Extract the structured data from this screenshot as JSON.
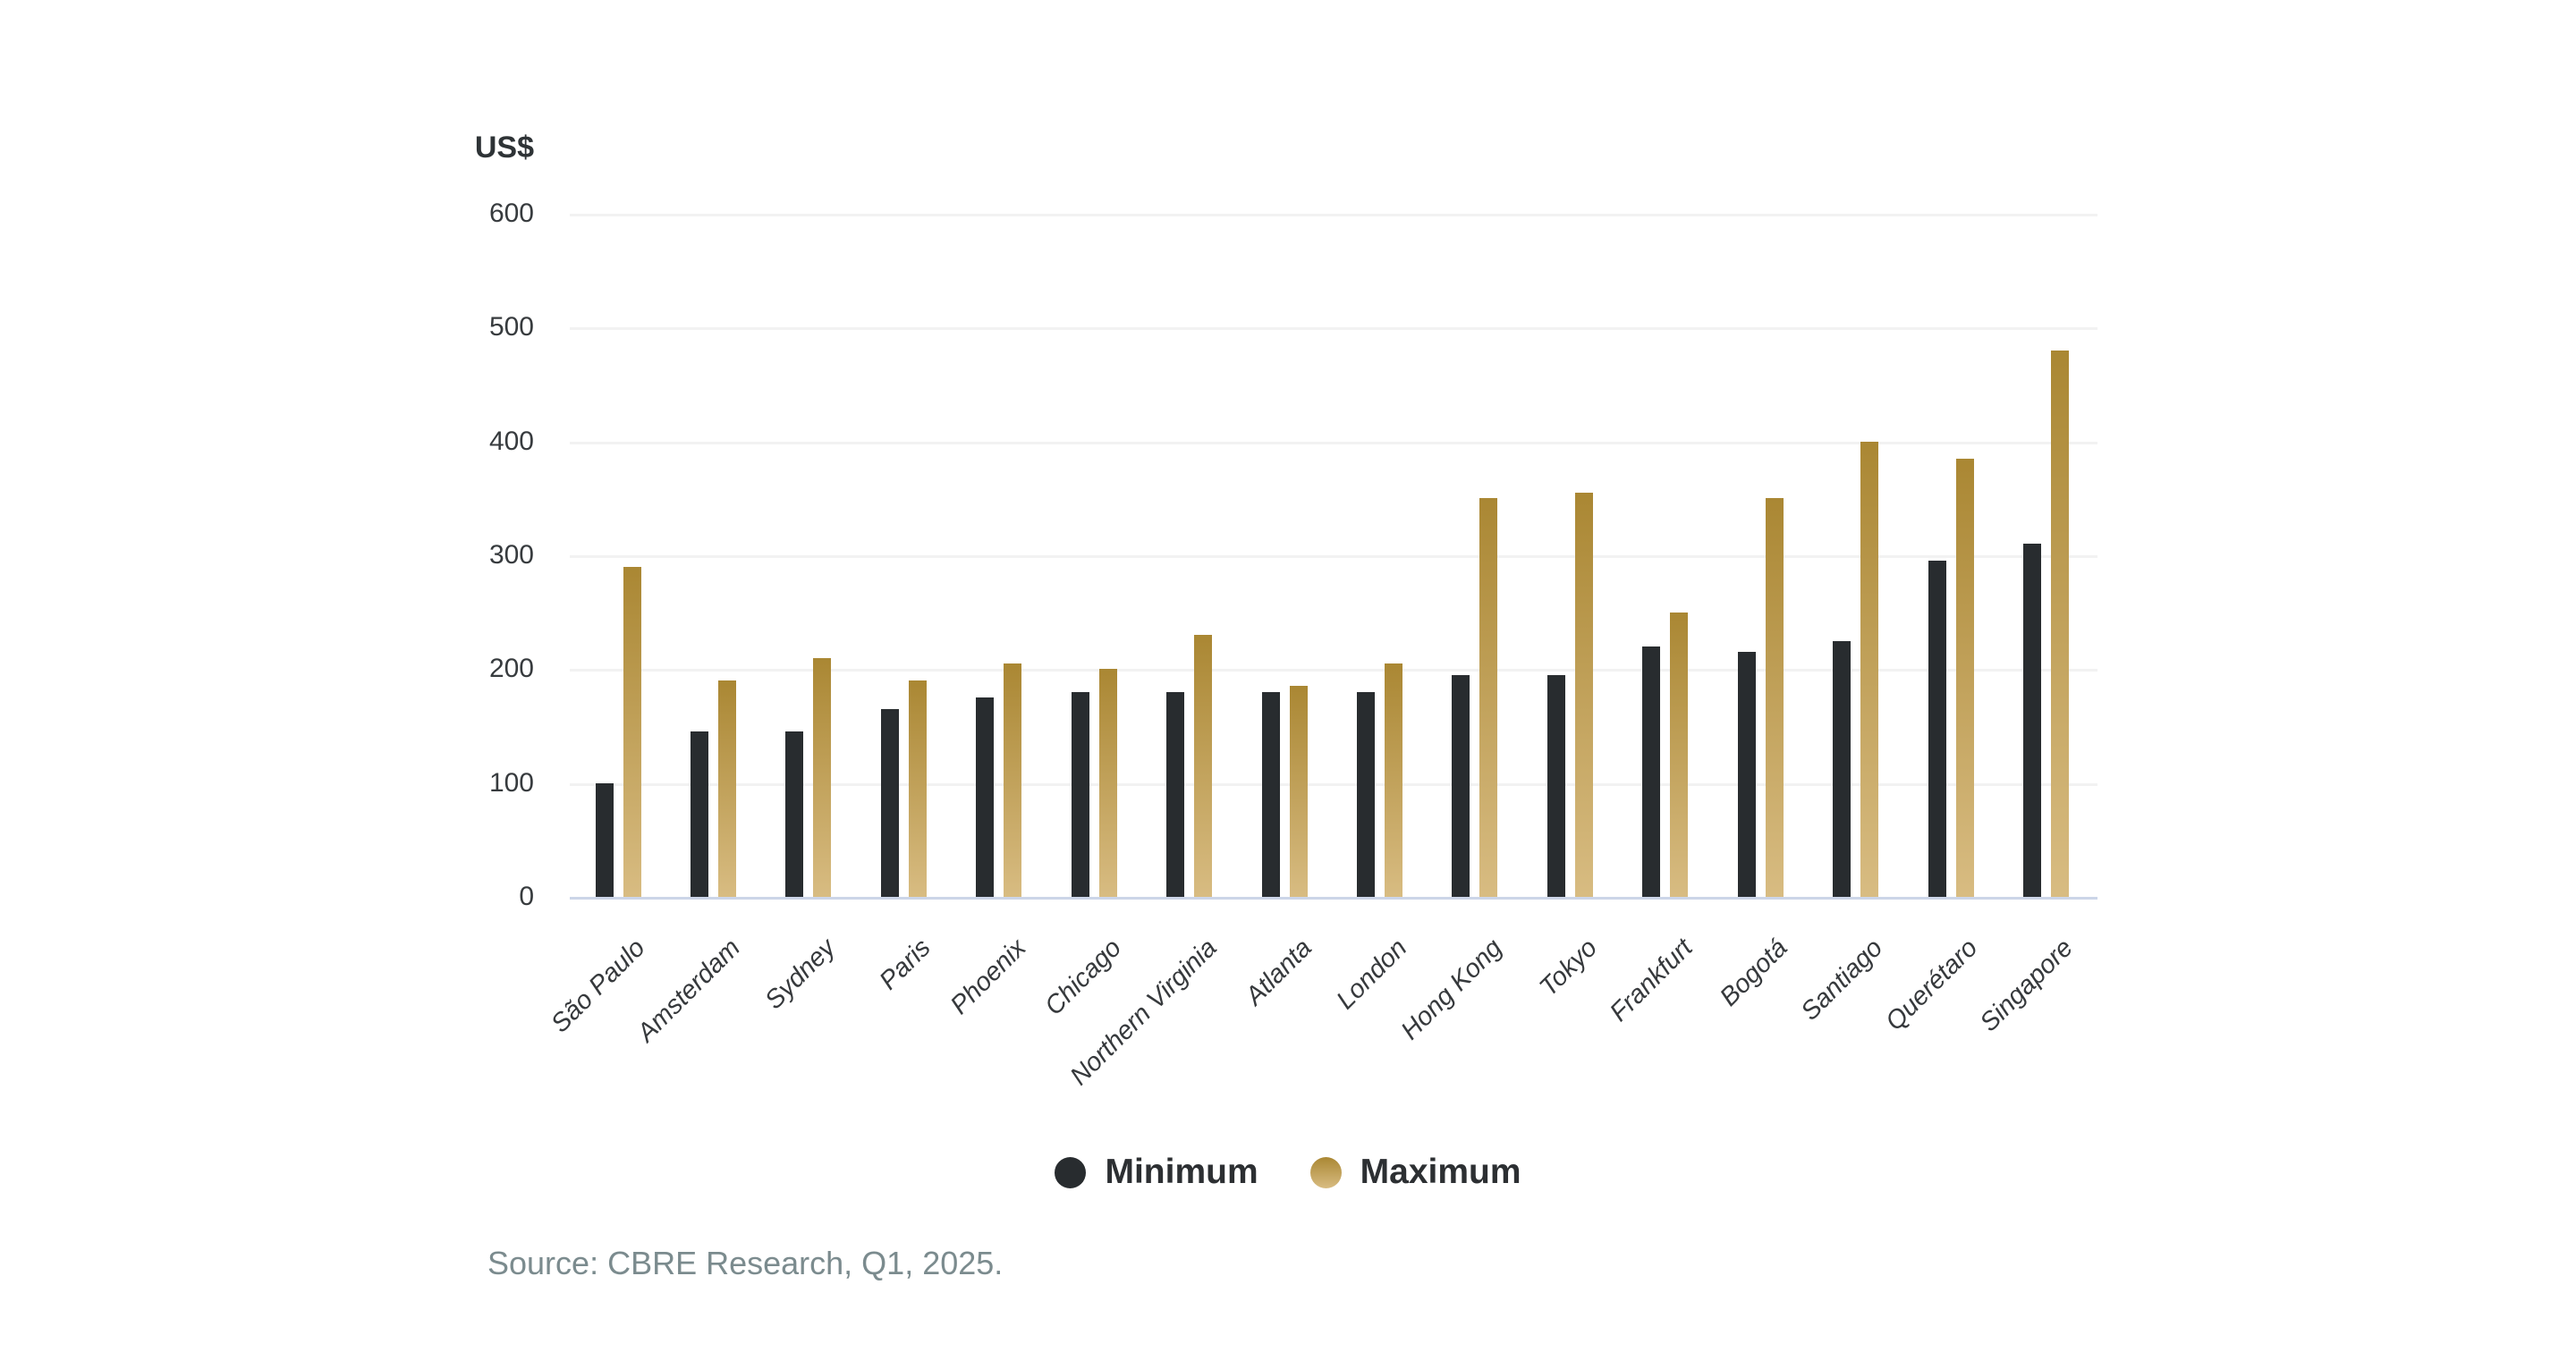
{
  "chart_data": {
    "type": "bar",
    "title": "",
    "y_axis_title": "US$",
    "xlabel": "",
    "ylabel": "US$",
    "ylim": [
      0,
      600
    ],
    "yticks": [
      0,
      100,
      200,
      300,
      400,
      500,
      600
    ],
    "grid": true,
    "legend_position": "bottom-center",
    "categories": [
      "São Paulo",
      "Amsterdam",
      "Sydney",
      "Paris",
      "Phoenix",
      "Chicago",
      "Northern Virginia",
      "Atlanta",
      "London",
      "Hong Kong",
      "Tokyo",
      "Frankfurt",
      "Bogotá",
      "Santiago",
      "Querétaro",
      "Singapore"
    ],
    "series": [
      {
        "name": "Minimum",
        "color": "#282c2f",
        "values": [
          100,
          145,
          145,
          165,
          175,
          180,
          180,
          180,
          180,
          195,
          195,
          220,
          215,
          225,
          295,
          310
        ]
      },
      {
        "name": "Maximum",
        "gradient_top": "#aa8733",
        "gradient_bottom": "#d8bc82",
        "values": [
          290,
          190,
          210,
          190,
          205,
          200,
          230,
          185,
          205,
          350,
          355,
          250,
          350,
          400,
          385,
          480
        ]
      }
    ]
  },
  "legend": {
    "minimum_label": "Minimum",
    "maximum_label": "Maximum"
  },
  "source": {
    "text": "Source: CBRE Research, Q1, 2025."
  },
  "colors": {
    "gridline": "#f2f2f2",
    "baseline": "#ccd5e8",
    "tick_text": "#373b3e",
    "background": "#ffffff"
  }
}
